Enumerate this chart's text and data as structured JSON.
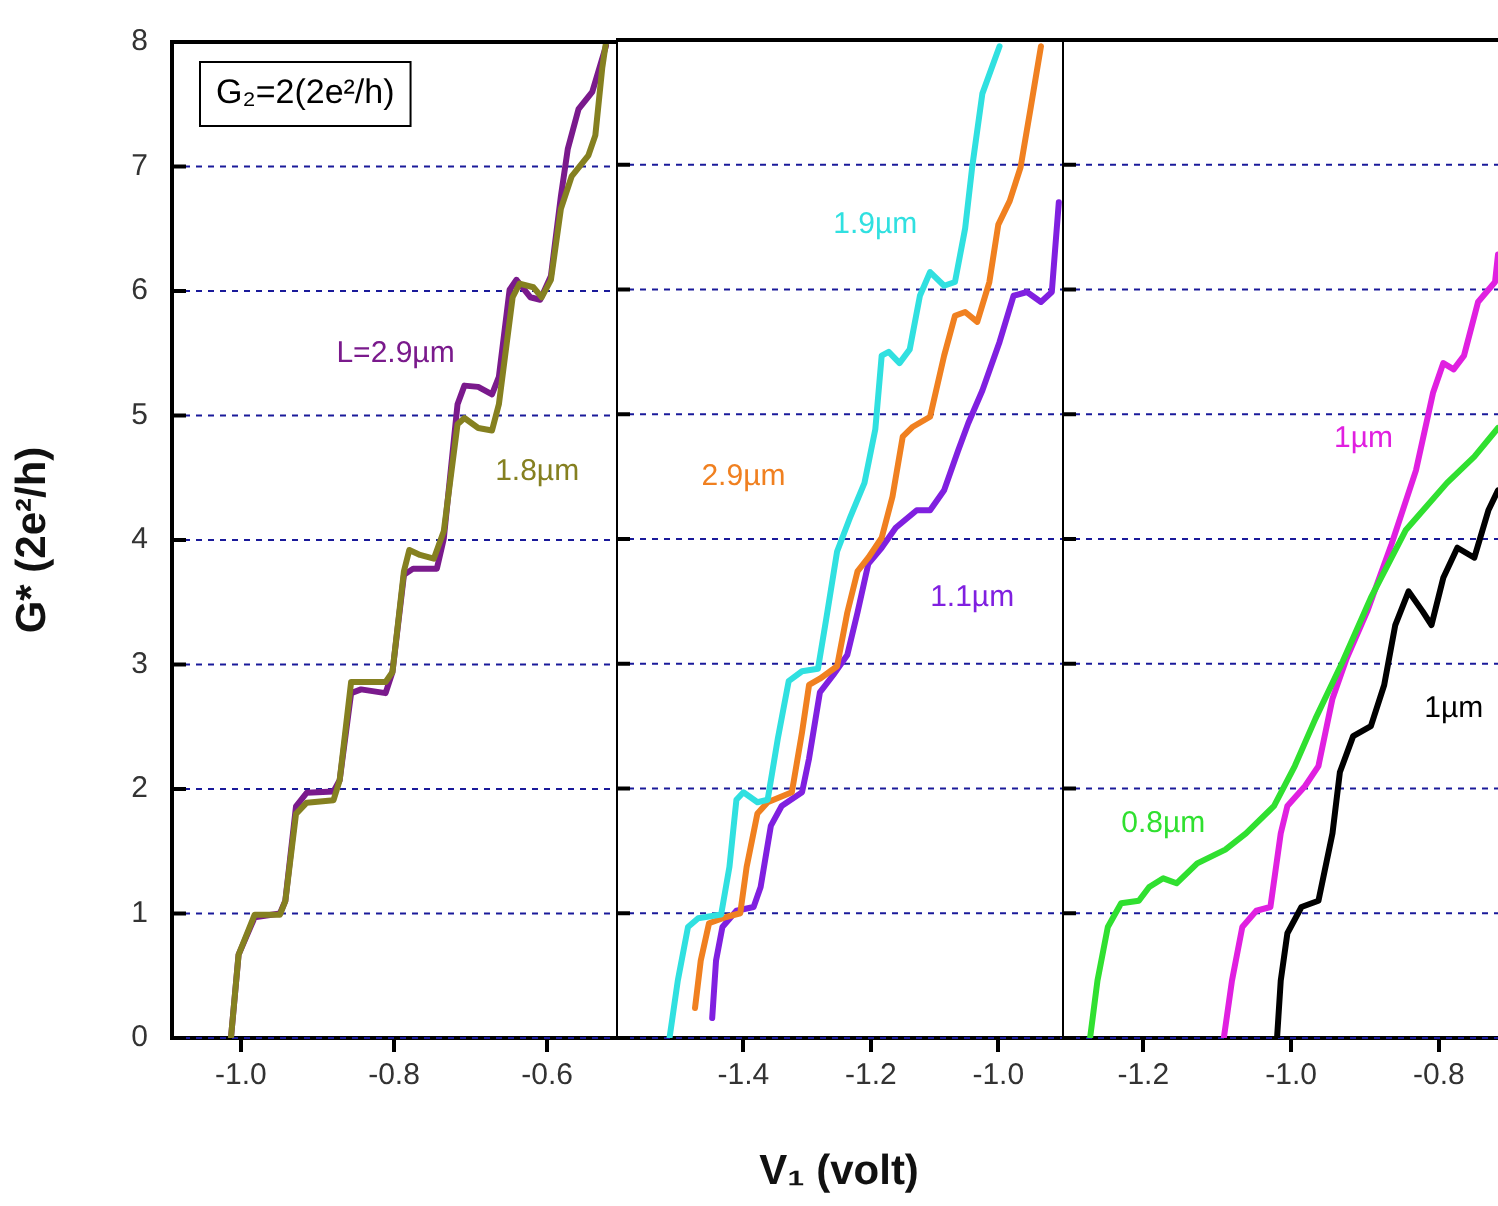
{
  "chart_data": [
    {
      "type": "line",
      "ylabel": "G* (2e²/h)",
      "annotations": [
        "G₂=2(2e²/h)"
      ],
      "xlim": [
        -1.09,
        -0.51
      ],
      "xticks": [
        {
          "value": -1,
          "label": "-1.0"
        },
        {
          "value": -0.8,
          "label": "-0.8"
        },
        {
          "value": -0.6,
          "label": "-0.6"
        }
      ],
      "ylim": [
        0,
        8
      ],
      "yticks": [
        0,
        1,
        2,
        3,
        4,
        5,
        6,
        7,
        8
      ],
      "grid": "y",
      "series": [
        {
          "name": "1.8µm",
          "color": "#858020",
          "x": [
            -1.013,
            -1.003,
            -0.982,
            -0.949,
            -0.942,
            -0.928,
            -0.914,
            -0.879,
            -0.871,
            -0.856,
            -0.811,
            -0.802,
            -0.787,
            -0.78,
            -0.766,
            -0.748,
            -0.735,
            -0.717,
            -0.708,
            -0.69,
            -0.672,
            -0.663,
            -0.645,
            -0.636,
            -0.618,
            -0.607,
            -0.595,
            -0.582,
            -0.568,
            -0.546,
            -0.537,
            -0.528,
            -0.523
          ],
          "values": [
            0,
            0.67,
            0.99,
            0.99,
            1.1,
            1.8,
            1.89,
            1.91,
            2.07,
            2.86,
            2.86,
            2.94,
            3.75,
            3.92,
            3.88,
            3.85,
            4.07,
            4.93,
            4.98,
            4.9,
            4.88,
            5.09,
            5.95,
            6.06,
            6.03,
            5.95,
            6.09,
            6.66,
            6.92,
            7.09,
            7.25,
            7.79,
            8
          ]
        },
        {
          "name": "L=2.9µm",
          "color": "#7a1a8c",
          "x": [
            -1.013,
            -1.003,
            -0.982,
            -0.949,
            -0.942,
            -0.928,
            -0.914,
            -0.879,
            -0.871,
            -0.856,
            -0.843,
            -0.811,
            -0.802,
            -0.787,
            -0.775,
            -0.744,
            -0.735,
            -0.717,
            -0.708,
            -0.69,
            -0.672,
            -0.663,
            -0.649,
            -0.64,
            -0.622,
            -0.609,
            -0.595,
            -0.582,
            -0.573,
            -0.559,
            -0.541,
            -0.523
          ],
          "values": [
            0,
            0.67,
            0.97,
            1,
            1.1,
            1.86,
            1.97,
            1.98,
            2.07,
            2.77,
            2.8,
            2.77,
            2.94,
            3.72,
            3.77,
            3.77,
            4.01,
            5.09,
            5.24,
            5.23,
            5.17,
            5.31,
            6.01,
            6.09,
            5.95,
            5.93,
            6.12,
            6.76,
            7.14,
            7.46,
            7.6,
            7.97
          ]
        }
      ]
    },
    {
      "type": "line",
      "xlabel": "V₁ (volt)",
      "tick_labels": "x",
      "xlim": [
        -1.6,
        -0.9
      ],
      "xticks": [
        {
          "value": -1.4,
          "label": "-1.4"
        },
        {
          "value": -1.2,
          "label": "-1.2"
        },
        {
          "value": -1,
          "label": "-1.0"
        }
      ],
      "ylim": [
        0,
        8
      ],
      "yticks": [
        0,
        1,
        2,
        3,
        4,
        5,
        6,
        7,
        8
      ],
      "grid": "y",
      "series": [
        {
          "name": "1.9µm",
          "color": "#30e0e0",
          "x": [
            -1.516,
            -1.503,
            -1.487,
            -1.471,
            -1.435,
            -1.422,
            -1.411,
            -1.4,
            -1.378,
            -1.362,
            -1.346,
            -1.329,
            -1.308,
            -1.283,
            -1.27,
            -1.253,
            -1.232,
            -1.21,
            -1.193,
            -1.183,
            -1.172,
            -1.155,
            -1.139,
            -1.123,
            -1.107,
            -1.085,
            -1.068,
            -1.052,
            -1.041,
            -1.025,
            -0.998
          ],
          "values": [
            0,
            0.46,
            0.89,
            0.96,
            0.99,
            1.37,
            1.91,
            1.97,
            1.89,
            1.91,
            2.4,
            2.86,
            2.94,
            2.96,
            3.36,
            3.9,
            4.18,
            4.45,
            4.88,
            5.47,
            5.5,
            5.41,
            5.52,
            5.95,
            6.14,
            6.03,
            6.06,
            6.49,
            6.98,
            7.57,
            7.95
          ]
        },
        {
          "name": "2.9µm",
          "color": "#f08020",
          "x": [
            -1.476,
            -1.467,
            -1.454,
            -1.427,
            -1.405,
            -1.395,
            -1.378,
            -1.362,
            -1.324,
            -1.308,
            -1.297,
            -1.28,
            -1.253,
            -1.237,
            -1.221,
            -1.204,
            -1.183,
            -1.166,
            -1.15,
            -1.134,
            -1.107,
            -1.085,
            -1.068,
            -1.052,
            -1.033,
            -1.014,
            -1,
            -0.982,
            -0.965,
            -0.949,
            -0.933
          ],
          "values": [
            0.24,
            0.62,
            0.92,
            0.97,
            1,
            1.37,
            1.8,
            1.89,
            1.97,
            2.45,
            2.83,
            2.88,
            2.98,
            3.41,
            3.74,
            3.85,
            4.01,
            4.34,
            4.82,
            4.9,
            4.98,
            5.47,
            5.79,
            5.82,
            5.74,
            6.06,
            6.52,
            6.71,
            6.98,
            7.46,
            7.95
          ]
        },
        {
          "name": "1.1µm",
          "color": "#8020e0",
          "x": [
            -1.449,
            -1.443,
            -1.433,
            -1.411,
            -1.384,
            -1.373,
            -1.357,
            -1.34,
            -1.308,
            -1.297,
            -1.28,
            -1.259,
            -1.237,
            -1.221,
            -1.204,
            -1.183,
            -1.161,
            -1.128,
            -1.107,
            -1.085,
            -1.063,
            -1.047,
            -1.025,
            -0.998,
            -0.976,
            -0.955,
            -0.933,
            -0.916,
            -0.905
          ],
          "values": [
            0.16,
            0.62,
            0.89,
            1.02,
            1.05,
            1.21,
            1.7,
            1.86,
            1.97,
            2.24,
            2.77,
            2.91,
            3.07,
            3.41,
            3.8,
            3.93,
            4.09,
            4.23,
            4.23,
            4.39,
            4.71,
            4.93,
            5.19,
            5.58,
            5.95,
            5.98,
            5.9,
            5.98,
            6.7
          ]
        }
      ]
    },
    {
      "type": "line",
      "tick_labels": "x",
      "xlim": [
        -1.31,
        -0.72
      ],
      "xticks": [
        {
          "value": -1.2,
          "label": "-1.2"
        },
        {
          "value": -1,
          "label": "-1.0"
        },
        {
          "value": -0.8,
          "label": "-0.8"
        }
      ],
      "ylim": [
        0,
        8
      ],
      "yticks": [
        0,
        1,
        2,
        3,
        4,
        5,
        6,
        7,
        8
      ],
      "grid": "y",
      "series": [
        {
          "name": "0.8µm",
          "color": "#30e030",
          "x": [
            -1.272,
            -1.262,
            -1.248,
            -1.23,
            -1.206,
            -1.192,
            -1.173,
            -1.155,
            -1.127,
            -1.089,
            -1.061,
            -1.023,
            -0.995,
            -0.967,
            -0.93,
            -0.892,
            -0.845,
            -0.789,
            -0.752,
            -0.72
          ],
          "values": [
            0,
            0.46,
            0.89,
            1.08,
            1.1,
            1.21,
            1.28,
            1.24,
            1.4,
            1.51,
            1.64,
            1.86,
            2.18,
            2.56,
            3.02,
            3.53,
            4.07,
            4.45,
            4.66,
            4.89
          ]
        },
        {
          "name": "1µm",
          "color": "#e020e0",
          "x": [
            -1.091,
            -1.08,
            -1.066,
            -1.047,
            -1.028,
            -1.014,
            -1.005,
            -0.981,
            -0.963,
            -0.944,
            -0.925,
            -0.897,
            -0.864,
            -0.831,
            -0.808,
            -0.794,
            -0.78,
            -0.766,
            -0.747,
            -0.724,
            -0.72
          ],
          "values": [
            0,
            0.46,
            0.89,
            1.02,
            1.05,
            1.64,
            1.86,
            2.02,
            2.18,
            2.72,
            3.04,
            3.42,
            3.96,
            4.55,
            5.17,
            5.41,
            5.36,
            5.47,
            5.9,
            6.06,
            6.28
          ]
        },
        {
          "name": "1µm",
          "color": "#000000",
          "x": [
            -1.019,
            -1.014,
            -1.005,
            -0.986,
            -0.963,
            -0.944,
            -0.934,
            -0.916,
            -0.892,
            -0.874,
            -0.859,
            -0.841,
            -0.822,
            -0.81,
            -0.794,
            -0.775,
            -0.752,
            -0.733,
            -0.72
          ],
          "values": [
            0,
            0.46,
            0.84,
            1.05,
            1.1,
            1.64,
            2.13,
            2.42,
            2.5,
            2.83,
            3.31,
            3.58,
            3.42,
            3.31,
            3.69,
            3.93,
            3.85,
            4.23,
            4.39
          ]
        }
      ]
    }
  ]
}
